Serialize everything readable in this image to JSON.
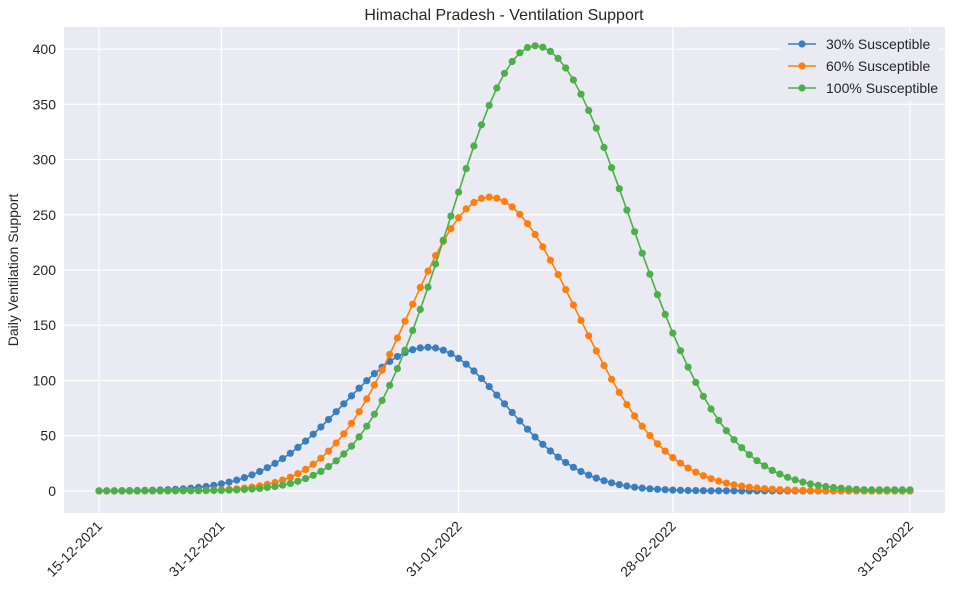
{
  "chart_data": {
    "type": "line",
    "title": "Himachal Pradesh - Ventilation Support",
    "xlabel": "",
    "ylabel": "Daily Ventilation Support",
    "x_start": "15-12-2021",
    "x_end": "31-03-2022",
    "x_ticks": [
      "15-12-2021",
      "31-12-2021",
      "31-01-2022",
      "28-02-2022",
      "31-03-2022"
    ],
    "ylim": [
      -20,
      420
    ],
    "y_ticks": [
      0,
      50,
      100,
      150,
      200,
      250,
      300,
      350,
      400
    ],
    "grid": true,
    "legend_position": "top-right",
    "background": "#eaeaf2",
    "series": [
      {
        "name": "30% Susceptible",
        "color": "#3a7ebf",
        "peak_date": "27-01-2022",
        "peak_value": 130,
        "sigma_left_days": 11.0,
        "sigma_right_days": 10.0,
        "end_value": 0
      },
      {
        "name": "60% Susceptible",
        "color": "#ff7f0e",
        "peak_date": "04-02-2022",
        "peak_value": 266,
        "sigma_left_days": 10.5,
        "sigma_right_days": 11.5,
        "end_value": 0
      },
      {
        "name": "100% Susceptible",
        "color": "#4daf4a",
        "peak_date": "10-02-2022",
        "peak_value": 403,
        "sigma_left_days": 11.2,
        "sigma_right_days": 12.5,
        "end_value": 1
      }
    ]
  }
}
